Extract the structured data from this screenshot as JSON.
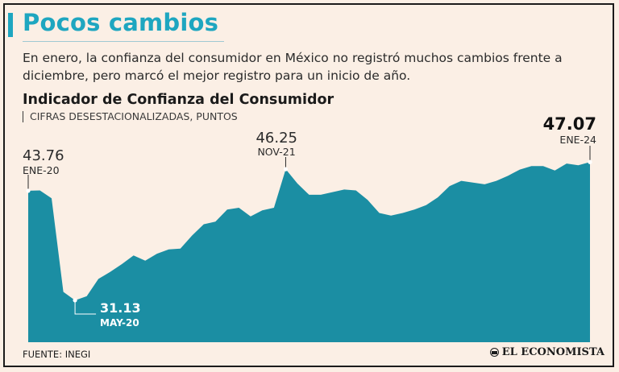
{
  "header": {
    "title": "Pocos cambios",
    "subtitle": "En enero, la confianza del consumidor en México no registró muchos cambios frente a diciembre, pero marcó el mejor registro para un inicio de año."
  },
  "chart_data": {
    "type": "area",
    "title": "Indicador de Confianza del Consumidor",
    "subtitle": "CIFRAS DESESTACIONALIZADAS, PUNTOS",
    "xlabel": "",
    "ylabel": "",
    "x": [
      "2020-01",
      "2020-02",
      "2020-03",
      "2020-04",
      "2020-05",
      "2020-06",
      "2020-07",
      "2020-08",
      "2020-09",
      "2020-10",
      "2020-11",
      "2020-12",
      "2021-01",
      "2021-02",
      "2021-03",
      "2021-04",
      "2021-05",
      "2021-06",
      "2021-07",
      "2021-08",
      "2021-09",
      "2021-10",
      "2021-11",
      "2021-12",
      "2022-01",
      "2022-02",
      "2022-03",
      "2022-04",
      "2022-05",
      "2022-06",
      "2022-07",
      "2022-08",
      "2022-09",
      "2022-10",
      "2022-11",
      "2022-12",
      "2023-01",
      "2023-02",
      "2023-03",
      "2023-04",
      "2023-05",
      "2023-06",
      "2023-07",
      "2023-08",
      "2023-09",
      "2023-10",
      "2023-11",
      "2023-12",
      "2024-01"
    ],
    "values": [
      43.76,
      43.8,
      42.9,
      32.1,
      31.13,
      31.6,
      33.6,
      34.4,
      35.3,
      36.3,
      35.7,
      36.5,
      37.0,
      37.1,
      38.6,
      39.9,
      40.2,
      41.6,
      41.8,
      40.8,
      41.5,
      41.8,
      46.25,
      44.6,
      43.3,
      43.3,
      43.6,
      43.9,
      43.8,
      42.7,
      41.2,
      40.9,
      41.2,
      41.6,
      42.1,
      43.0,
      44.3,
      44.9,
      44.7,
      44.5,
      44.9,
      45.5,
      46.2,
      46.6,
      46.6,
      46.1,
      46.9,
      46.7,
      47.07
    ],
    "ylim": [
      26.3,
      50.9
    ],
    "fill_color": "#1b8ea3",
    "background": "#fbefe5",
    "annotations": [
      {
        "index": 0,
        "value": "43.76",
        "label": "ENE-20",
        "emphasis": false
      },
      {
        "index": 4,
        "value": "31.13",
        "label": "MAY-20",
        "emphasis": false
      },
      {
        "index": 22,
        "value": "46.25",
        "label": "NOV-21",
        "emphasis": false
      },
      {
        "index": 48,
        "value": "47.07",
        "label": "ENE-24",
        "emphasis": true
      }
    ]
  },
  "footer": {
    "source": "FUENTE: INEGI",
    "brand": "EL ECONOMISTA",
    "brand_icon": "globe-icon"
  }
}
